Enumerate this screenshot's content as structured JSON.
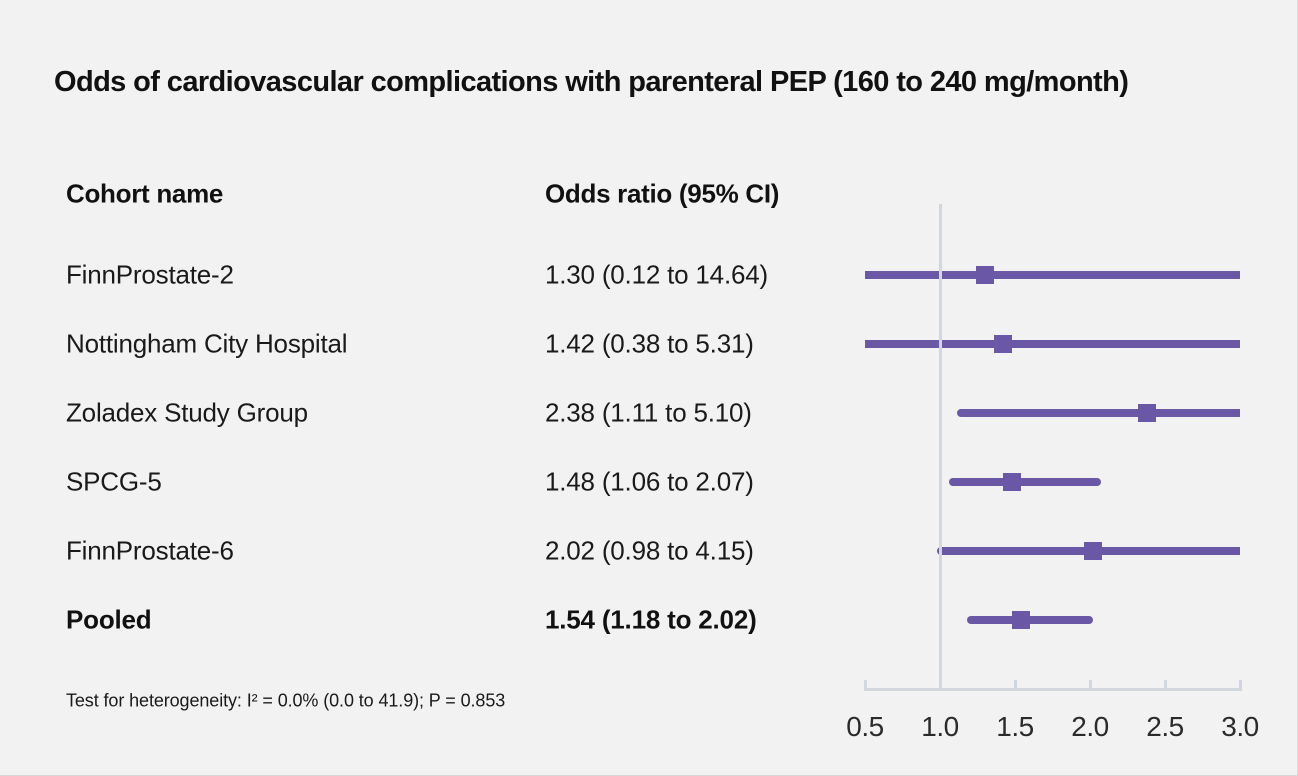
{
  "title": "Odds of cardiovascular complications with parenteral PEP (160 to 240 mg/month)",
  "table": {
    "cohort_header": "Cohort name",
    "or_header": "Odds ratio (95% CI)"
  },
  "footnote": "Test for heterogeneity: I² = 0.0% (0.0 to 41.9); P = 0.853",
  "chart_data": {
    "type": "forest",
    "title": "Odds of cardiovascular complications with parenteral PEP (160 to 240 mg/month)",
    "xlabel": "Odds ratio",
    "axis": {
      "xmin": 0.5,
      "xmax": 3.0,
      "ticks": [
        0.5,
        1.0,
        1.5,
        2.0,
        2.5,
        3.0
      ],
      "tick_labels": [
        "0.5",
        "1.0",
        "1.5",
        "2.0",
        "2.5",
        "3.0"
      ],
      "reference_line": 1.0
    },
    "rows": [
      {
        "label": "FinnProstate-2",
        "or_text": "1.30 (0.12 to 14.64)",
        "or": 1.3,
        "ci_low": 0.12,
        "ci_high": 14.64,
        "pooled": false
      },
      {
        "label": "Nottingham City Hospital",
        "or_text": "1.42 (0.38 to 5.31)",
        "or": 1.42,
        "ci_low": 0.38,
        "ci_high": 5.31,
        "pooled": false
      },
      {
        "label": "Zoladex Study Group",
        "or_text": "2.38 (1.11 to 5.10)",
        "or": 2.38,
        "ci_low": 1.11,
        "ci_high": 5.1,
        "pooled": false
      },
      {
        "label": "SPCG-5",
        "or_text": "1.48 (1.06 to 2.07)",
        "or": 1.48,
        "ci_low": 1.06,
        "ci_high": 2.07,
        "pooled": false
      },
      {
        "label": "FinnProstate-6",
        "or_text": "2.02 (0.98 to 4.15)",
        "or": 2.02,
        "ci_low": 0.98,
        "ci_high": 4.15,
        "pooled": false
      },
      {
        "label": "Pooled",
        "or_text": "1.54 (1.18 to 2.02)",
        "or": 1.54,
        "ci_low": 1.18,
        "ci_high": 2.02,
        "pooled": true
      }
    ],
    "heterogeneity_note": "Test for heterogeneity: I² = 0.0% (0.0 to 41.9); P = 0.853",
    "colors": {
      "marker": "#6a58a6",
      "axis": "#d2d6dd",
      "text": "#1a1a1a",
      "background": "#f2f2f2"
    }
  }
}
